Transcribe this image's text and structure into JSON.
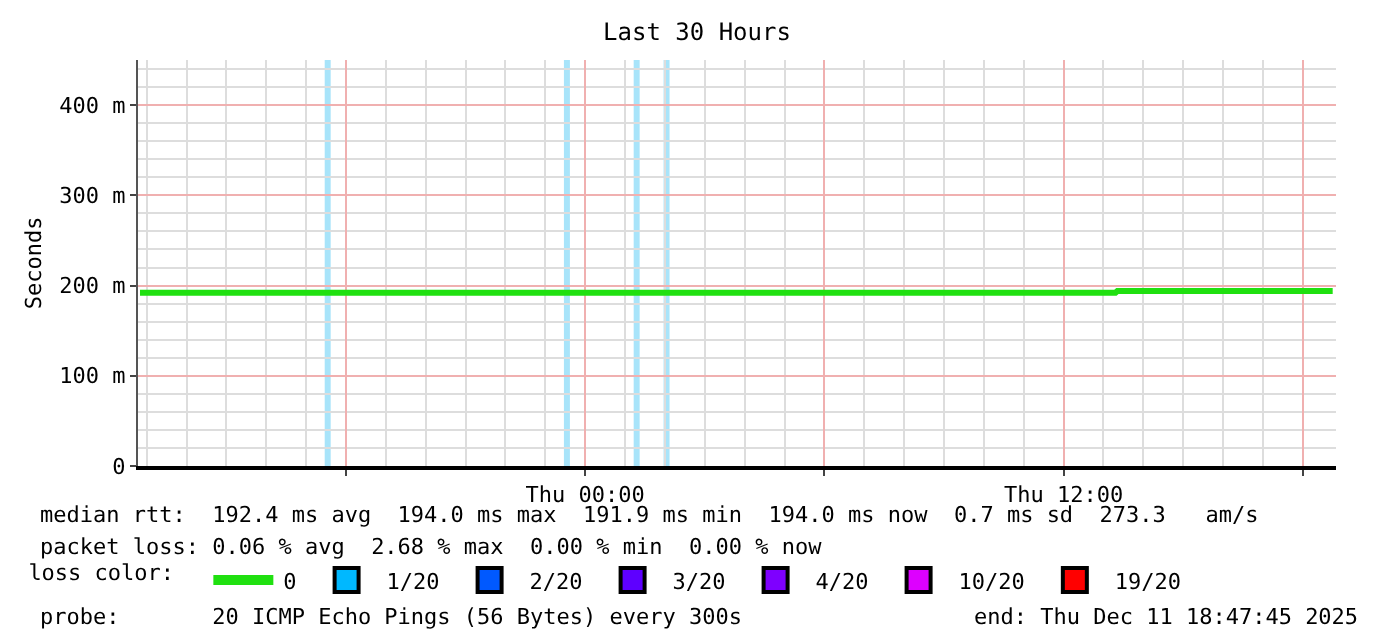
{
  "chart_data": {
    "type": "line",
    "title": "Last 30 Hours",
    "ylabel": "Seconds",
    "x": [
      "2025-12-10T12:50",
      "2025-12-10T18:00",
      "2025-12-11T00:00",
      "2025-12-11T06:00",
      "2025-12-11T12:00",
      "2025-12-11T13:18",
      "2025-12-11T13:21",
      "2025-12-11T18:45"
    ],
    "series": [
      {
        "name": "0",
        "color": "#20e010",
        "values": [
          192,
          192,
          192,
          192,
          192,
          192,
          194,
          194
        ]
      },
      {
        "name": "1/20",
        "color": "#00b8ff",
        "values": [
          null,
          null,
          null,
          null,
          null,
          null,
          null,
          null
        ]
      },
      {
        "name": "2/20",
        "color": "#0059ff",
        "values": [
          null,
          null,
          null,
          null,
          null,
          null,
          null,
          null
        ]
      },
      {
        "name": "3/20",
        "color": "#5e00ff",
        "values": [
          null,
          null,
          null,
          null,
          null,
          null,
          null,
          null
        ]
      },
      {
        "name": "4/20",
        "color": "#7e00ff",
        "values": [
          null,
          null,
          null,
          null,
          null,
          null,
          null,
          null
        ]
      },
      {
        "name": "10/20",
        "color": "#dd00ff",
        "values": [
          null,
          null,
          null,
          null,
          null,
          null,
          null,
          null
        ]
      },
      {
        "name": "19/20",
        "color": "#ff0000",
        "values": [
          null,
          null,
          null,
          null,
          null,
          null,
          null,
          null
        ]
      }
    ],
    "legend_title": "loss color:",
    "legend": "bottom",
    "bands": [
      {
        "axis": "x",
        "from": "2025-12-10T17:28",
        "to": "2025-12-10T17:37",
        "color": "#a8e4fa"
      },
      {
        "axis": "x",
        "from": "2025-12-10T23:28",
        "to": "2025-12-10T23:37",
        "color": "#a8e4fa"
      },
      {
        "axis": "x",
        "from": "2025-12-11T01:13",
        "to": "2025-12-11T01:22",
        "color": "#a8e4fa"
      },
      {
        "axis": "x",
        "from": "2025-12-11T01:58",
        "to": "2025-12-11T02:07",
        "color": "#a8e4fa"
      }
    ],
    "xlim": [
      "2025-12-10T12:47",
      "2025-12-11T18:50"
    ],
    "xticks": [
      {
        "value": "2025-12-10T18:00",
        "label": null
      },
      {
        "value": "2025-12-11T00:00",
        "label": "Thu 00:00"
      },
      {
        "value": "2025-12-11T06:00",
        "label": null
      },
      {
        "value": "2025-12-11T12:00",
        "label": "Thu 12:00"
      },
      {
        "value": "2025-12-11T18:00",
        "label": null
      }
    ],
    "ylim": [
      0,
      450
    ],
    "yticks": [
      {
        "value": 0,
        "label": "0"
      },
      {
        "value": 100,
        "label": "100 m"
      },
      {
        "value": 200,
        "label": "200 m"
      },
      {
        "value": 300,
        "label": "300 m"
      },
      {
        "value": 400,
        "label": "400 m"
      }
    ],
    "grid": true,
    "marker": "none",
    "line_style": "solid",
    "annotations": [
      "median rtt:  192.4 ms avg  194.0 ms max  191.9 ms min  194.0 ms now  0.7 ms sd  273.3   am/s",
      "packet loss: 0.06 % avg  2.68 % max  0.00 % min  0.00 % now",
      "probe:       20 ICMP Echo Pings (56 Bytes) every 300s",
      "end: Thu Dec 11 18:47:45 2025"
    ]
  }
}
